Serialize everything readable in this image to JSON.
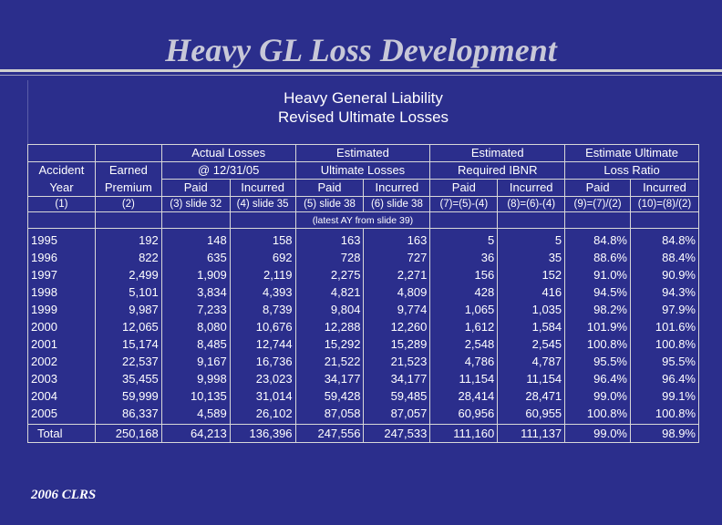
{
  "slide_title": "Heavy GL Loss Development",
  "panel_title_1": "Heavy General Liability",
  "panel_title_2": "Revised Ultimate Losses",
  "group_headers": {
    "actual_1": "Actual Losses",
    "actual_2": "@ 12/31/05",
    "est_ult_1": "Estimated",
    "est_ult_2": "Ultimate Losses",
    "est_ibnr_1": "Estimated",
    "est_ibnr_2": "Required IBNR",
    "elr_1": "Estimate Ultimate",
    "elr_2": "Loss Ratio"
  },
  "columns": [
    {
      "h1": "Accident",
      "h2": "Year",
      "h3": "(1)"
    },
    {
      "h1": "Earned",
      "h2": "Premium",
      "h3": "(2)"
    },
    {
      "h2": "Paid",
      "h3": "(3) slide 32"
    },
    {
      "h2": "Incurred",
      "h3": "(4) slide 35"
    },
    {
      "h2": "Paid",
      "h3": "(5) slide 38"
    },
    {
      "h2": "Incurred",
      "h3": "(6) slide 38"
    },
    {
      "h2": "Paid",
      "h3": "(7)=(5)-(4)"
    },
    {
      "h2": "Incurred",
      "h3": "(8)=(6)-(4)"
    },
    {
      "h2": "Paid",
      "h3": "(9)=(7)/(2)"
    },
    {
      "h2": "Incurred",
      "h3": "(10)=(8)/(2)"
    }
  ],
  "note": "(latest AY from slide 39)",
  "rows": [
    [
      "1995",
      "192",
      "148",
      "158",
      "163",
      "163",
      "5",
      "5",
      "84.8%",
      "84.8%"
    ],
    [
      "1996",
      "822",
      "635",
      "692",
      "728",
      "727",
      "36",
      "35",
      "88.6%",
      "88.4%"
    ],
    [
      "1997",
      "2,499",
      "1,909",
      "2,119",
      "2,275",
      "2,271",
      "156",
      "152",
      "91.0%",
      "90.9%"
    ],
    [
      "1998",
      "5,101",
      "3,834",
      "4,393",
      "4,821",
      "4,809",
      "428",
      "416",
      "94.5%",
      "94.3%"
    ],
    [
      "1999",
      "9,987",
      "7,233",
      "8,739",
      "9,804",
      "9,774",
      "1,065",
      "1,035",
      "98.2%",
      "97.9%"
    ],
    [
      "2000",
      "12,065",
      "8,080",
      "10,676",
      "12,288",
      "12,260",
      "1,612",
      "1,584",
      "101.9%",
      "101.6%"
    ],
    [
      "2001",
      "15,174",
      "8,485",
      "12,744",
      "15,292",
      "15,289",
      "2,548",
      "2,545",
      "100.8%",
      "100.8%"
    ],
    [
      "2002",
      "22,537",
      "9,167",
      "16,736",
      "21,522",
      "21,523",
      "4,786",
      "4,787",
      "95.5%",
      "95.5%"
    ],
    [
      "2003",
      "35,455",
      "9,998",
      "23,023",
      "34,177",
      "34,177",
      "11,154",
      "11,154",
      "96.4%",
      "96.4%"
    ],
    [
      "2004",
      "59,999",
      "10,135",
      "31,014",
      "59,428",
      "59,485",
      "28,414",
      "28,471",
      "99.0%",
      "99.1%"
    ],
    [
      "2005",
      "86,337",
      "4,589",
      "26,102",
      "87,058",
      "87,057",
      "60,956",
      "60,955",
      "100.8%",
      "100.8%"
    ]
  ],
  "total": [
    "Total",
    "250,168",
    "64,213",
    "136,396",
    "247,556",
    "247,533",
    "111,160",
    "111,137",
    "99.0%",
    "98.9%"
  ],
  "footer": "2006 CLRS",
  "colors": {
    "background": "#2b2e8c",
    "title": "#c8c8d8",
    "text": "#ffffff",
    "rule": "#d8d8d8"
  }
}
